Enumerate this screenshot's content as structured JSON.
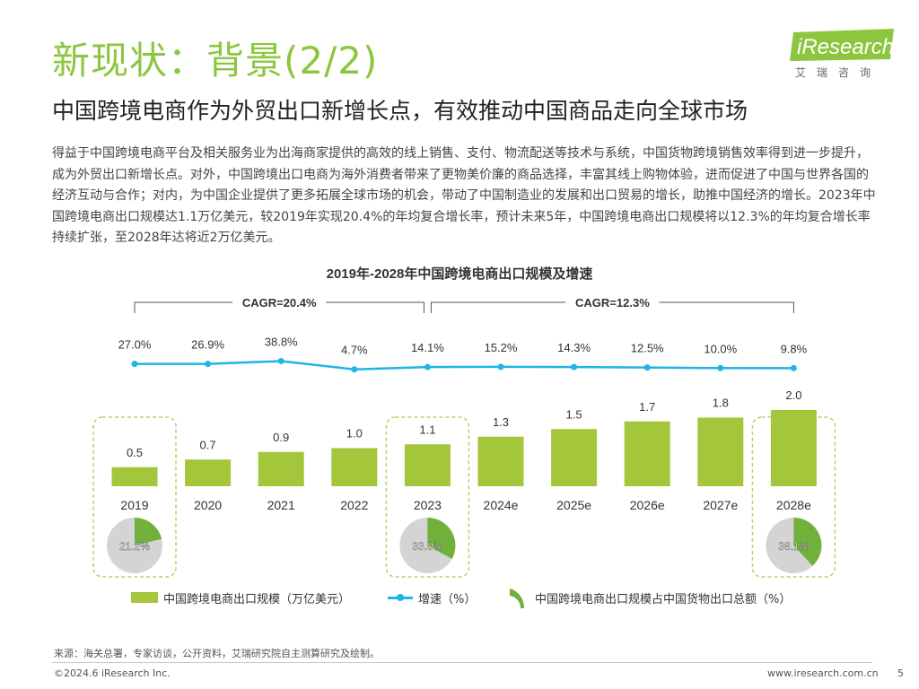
{
  "page": {
    "title": "新现状：背景(2/2)",
    "subtitle": "中国跨境电商作为外贸出口新增长点，有效推动中国商品走向全球市场",
    "body": "得益于中国跨境电商平台及相关服务业为出海商家提供的高效的线上销售、支付、物流配送等技术与系统，中国货物跨境销售效率得到进一步提升，成为外贸出口新增长点。对外，中国跨境出口电商为海外消费者带来了更物美价廉的商品选择，丰富其线上购物体验，进而促进了中国与世界各国的经济互动与合作；对内，为中国企业提供了更多拓展全球市场的机会，带动了中国制造业的发展和出口贸易的增长，助推中国经济的增长。2023年中国跨境电商出口规模达1.1万亿美元，较2019年实现20.4%的年均复合增长率，预计未来5年，中国跨境电商出口规模将以12.3%的年均复合增长率持续扩张，至2028年达将近2万亿美元。",
    "source": "来源：海关总署，专家访谈，公开资料，艾瑞研究院自主测算研究及绘制。",
    "copyright": "©2024.6 iResearch Inc.",
    "website": "www.iresearch.com.cn",
    "page_number": "5"
  },
  "logo": {
    "brand": "iResearch",
    "chinese": "艾瑞咨询"
  },
  "colors": {
    "accent_green": "#8cc63f",
    "bar_green": "#a3c63a",
    "line_blue": "#1fb5e6",
    "pie_green": "#6fb13a",
    "pie_gray": "#d4d4d4",
    "highlight_border": "#b5d46a"
  },
  "chart_data": {
    "type": "bar",
    "title": "2019年-2028年中国跨境电商出口规模及增速",
    "categories": [
      "2019",
      "2020",
      "2021",
      "2022",
      "2023",
      "2024e",
      "2025e",
      "2026e",
      "2027e",
      "2028e"
    ],
    "series": [
      {
        "name": "中国跨境电商出口规模（万亿美元）",
        "type": "bar",
        "values": [
          0.5,
          0.7,
          0.9,
          1.0,
          1.1,
          1.3,
          1.5,
          1.7,
          1.8,
          2.0
        ],
        "labels": [
          "0.5",
          "0.7",
          "0.9",
          "1.0",
          "1.1",
          "1.3",
          "1.5",
          "1.7",
          "1.8",
          "2.0"
        ]
      },
      {
        "name": "增速（%）",
        "type": "line",
        "values": [
          27.0,
          26.9,
          38.8,
          4.7,
          14.1,
          15.2,
          14.3,
          12.5,
          10.0,
          9.8
        ],
        "labels": [
          "27.0%",
          "26.9%",
          "38.8%",
          "4.7%",
          "14.1%",
          "15.2%",
          "14.3%",
          "12.5%",
          "10.0%",
          "9.8%"
        ]
      }
    ],
    "pies": {
      "name": "中国跨境电商出口规模占中国货物出口总额（%）",
      "items": [
        {
          "category": "2019",
          "value": 21.2,
          "label": "21.2%"
        },
        {
          "category": "2023",
          "value": 33.0,
          "label": "33.0%"
        },
        {
          "category": "2028e",
          "value": 38.1,
          "label": "38.1%"
        }
      ]
    },
    "cagr": [
      {
        "label": "CAGR=20.4%",
        "from": "2019",
        "to": "2023"
      },
      {
        "label": "CAGR=12.3%",
        "from": "2023",
        "to": "2028e"
      }
    ],
    "highlighted": [
      "2019",
      "2023",
      "2028e"
    ],
    "legend": {
      "position": "bottom"
    },
    "ylim_bar": [
      0,
      2.0
    ],
    "grid": false
  }
}
